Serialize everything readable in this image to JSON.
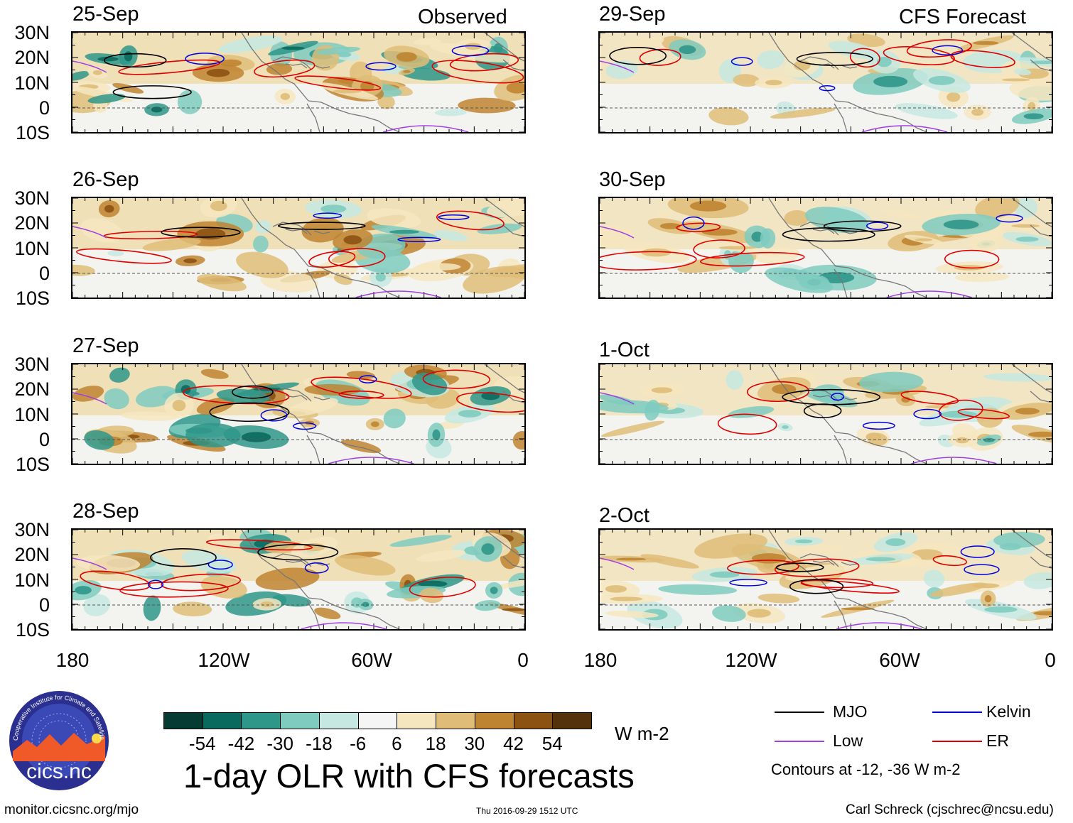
{
  "headers": {
    "left": "Observed",
    "right": "CFS Forecast"
  },
  "panels": {
    "left": [
      {
        "date": "25-Sep"
      },
      {
        "date": "26-Sep"
      },
      {
        "date": "27-Sep"
      },
      {
        "date": "28-Sep"
      }
    ],
    "right": [
      {
        "date": "29-Sep"
      },
      {
        "date": "30-Sep"
      },
      {
        "date": "1-Oct"
      },
      {
        "date": "2-Oct"
      }
    ]
  },
  "axes": {
    "lat_labels": [
      "30N",
      "20N",
      "10N",
      "0",
      "10S"
    ],
    "lon_labels": [
      "180",
      "120W",
      "60W",
      "0"
    ]
  },
  "colorbar": {
    "unit": "W m-2",
    "colors": [
      "#053b32",
      "#0b6a5e",
      "#2f968a",
      "#7fcbbf",
      "#c5e9e2",
      "#f5f5f5",
      "#f6e6c0",
      "#dfbd78",
      "#bf8431",
      "#8c5212",
      "#54330c"
    ],
    "tick_labels": [
      "-54",
      "-42",
      "-30",
      "-18",
      "-6",
      "6",
      "18",
      "30",
      "42",
      "54"
    ]
  },
  "title": "1-day OLR with CFS forecasts",
  "legend": {
    "items": [
      {
        "label": "MJO",
        "color": "#000000"
      },
      {
        "label": "Kelvin",
        "color": "#0000dd"
      },
      {
        "label": "Low",
        "color": "#a040e0"
      },
      {
        "label": "ER",
        "color": "#e00000"
      }
    ],
    "note": "Contours at -12, -36 W m-2"
  },
  "logo": {
    "text": "cics.nc",
    "ring_text": "Cooperative Institute for Climate and Satellites"
  },
  "footer": {
    "url": "monitor.cicsnc.org/mjo",
    "timestamp": "Thu 2016-09-29 1512 UTC",
    "credit": "Carl Schreck (cjschrec@ncsu.edu)"
  }
}
